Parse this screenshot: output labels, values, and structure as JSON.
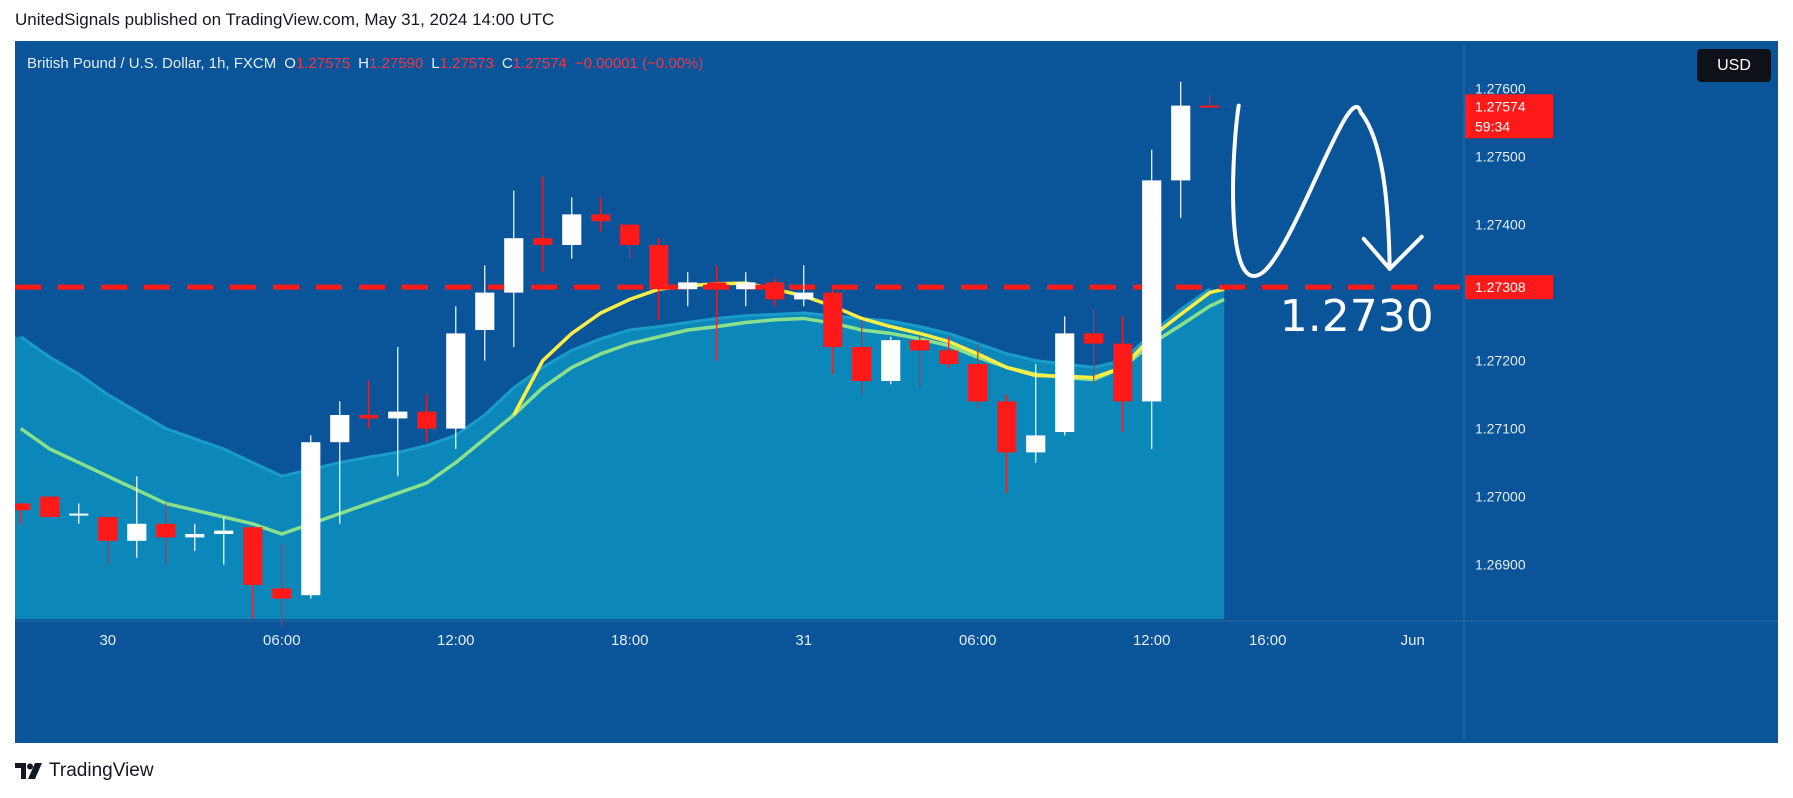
{
  "header": {
    "publisher": "UnitedSignals published on TradingView.com, May 31, 2024 14:00 UTC"
  },
  "legend": {
    "symbol": "British Pound / U.S. Dollar, 1h, FXCM",
    "open_label": "O",
    "open": "1.27575",
    "high_label": "H",
    "high": "1.27590",
    "low_label": "L",
    "low": "1.27573",
    "close_label": "C",
    "close": "1.27574",
    "change": "−0.00001 (−0.00%)"
  },
  "currency_button": "USD",
  "footer": {
    "brand": "TradingView"
  },
  "colors": {
    "background": "#0a5499",
    "up_candle": "#ffffff",
    "down_candle": "#ff1a1a",
    "price_line": "#ff1a1a",
    "ema_fast": "#ffee44",
    "ema_slow": "#8be08b",
    "cloud": "#0b87b9",
    "label_red": "#ff1a1a"
  },
  "chart_data": {
    "type": "candlestick",
    "interval": "1h",
    "y_axis": {
      "ticks": [
        "1.26900",
        "1.27000",
        "1.27100",
        "1.27200",
        "1.27300",
        "1.27400",
        "1.27500",
        "1.27600"
      ],
      "ylim": [
        1.2682,
        1.2767
      ]
    },
    "x_axis": {
      "ticks": [
        {
          "label": "30",
          "index": 3
        },
        {
          "label": "06:00",
          "index": 9
        },
        {
          "label": "12:00",
          "index": 15
        },
        {
          "label": "18:00",
          "index": 21
        },
        {
          "label": "31",
          "index": 27
        },
        {
          "label": "06:00",
          "index": 33
        },
        {
          "label": "12:00",
          "index": 39
        },
        {
          "label": "16:00",
          "index": 43
        },
        {
          "label": "Jun",
          "index": 48
        }
      ],
      "range": [
        -0.2,
        49.7
      ]
    },
    "candles": [
      {
        "o": 1.2699,
        "h": 1.2699,
        "l": 1.2696,
        "c": 1.2698
      },
      {
        "o": 1.27,
        "h": 1.27,
        "l": 1.2697,
        "c": 1.2697
      },
      {
        "o": 1.26975,
        "h": 1.2699,
        "l": 1.2696,
        "c": 1.26975
      },
      {
        "o": 1.2697,
        "h": 1.2697,
        "l": 1.269,
        "c": 1.26935
      },
      {
        "o": 1.26935,
        "h": 1.2703,
        "l": 1.2691,
        "c": 1.2696
      },
      {
        "o": 1.2696,
        "h": 1.2699,
        "l": 1.269,
        "c": 1.2694
      },
      {
        "o": 1.2694,
        "h": 1.2696,
        "l": 1.2692,
        "c": 1.26945
      },
      {
        "o": 1.26945,
        "h": 1.2697,
        "l": 1.269,
        "c": 1.2695
      },
      {
        "o": 1.26955,
        "h": 1.26955,
        "l": 1.2682,
        "c": 1.2687
      },
      {
        "o": 1.26865,
        "h": 1.2693,
        "l": 1.2681,
        "c": 1.2685
      },
      {
        "o": 1.26855,
        "h": 1.2709,
        "l": 1.2685,
        "c": 1.2708
      },
      {
        "o": 1.2708,
        "h": 1.2714,
        "l": 1.2696,
        "c": 1.2712
      },
      {
        "o": 1.2712,
        "h": 1.2717,
        "l": 1.271,
        "c": 1.27115
      },
      {
        "o": 1.27115,
        "h": 1.2722,
        "l": 1.2703,
        "c": 1.27125
      },
      {
        "o": 1.27125,
        "h": 1.2715,
        "l": 1.2708,
        "c": 1.271
      },
      {
        "o": 1.271,
        "h": 1.2728,
        "l": 1.2707,
        "c": 1.2724
      },
      {
        "o": 1.27245,
        "h": 1.2734,
        "l": 1.272,
        "c": 1.273
      },
      {
        "o": 1.273,
        "h": 1.2745,
        "l": 1.2722,
        "c": 1.2738
      },
      {
        "o": 1.2738,
        "h": 1.2747,
        "l": 1.2733,
        "c": 1.2737
      },
      {
        "o": 1.2737,
        "h": 1.2744,
        "l": 1.2735,
        "c": 1.27415
      },
      {
        "o": 1.27415,
        "h": 1.2744,
        "l": 1.2739,
        "c": 1.27405
      },
      {
        "o": 1.274,
        "h": 1.274,
        "l": 1.2735,
        "c": 1.2737
      },
      {
        "o": 1.2737,
        "h": 1.2738,
        "l": 1.2726,
        "c": 1.27305
      },
      {
        "o": 1.27305,
        "h": 1.2733,
        "l": 1.2728,
        "c": 1.27315
      },
      {
        "o": 1.27315,
        "h": 1.2734,
        "l": 1.272,
        "c": 1.27305
      },
      {
        "o": 1.27305,
        "h": 1.2733,
        "l": 1.2728,
        "c": 1.27315
      },
      {
        "o": 1.27315,
        "h": 1.2732,
        "l": 1.2728,
        "c": 1.2729
      },
      {
        "o": 1.2729,
        "h": 1.2734,
        "l": 1.2728,
        "c": 1.273
      },
      {
        "o": 1.273,
        "h": 1.2731,
        "l": 1.2718,
        "c": 1.2722
      },
      {
        "o": 1.2722,
        "h": 1.2726,
        "l": 1.2715,
        "c": 1.2717
      },
      {
        "o": 1.2717,
        "h": 1.27235,
        "l": 1.27165,
        "c": 1.2723
      },
      {
        "o": 1.2723,
        "h": 1.27235,
        "l": 1.2716,
        "c": 1.27215
      },
      {
        "o": 1.27215,
        "h": 1.27235,
        "l": 1.2719,
        "c": 1.27195
      },
      {
        "o": 1.27195,
        "h": 1.27225,
        "l": 1.2713,
        "c": 1.2714
      },
      {
        "o": 1.2714,
        "h": 1.2715,
        "l": 1.27005,
        "c": 1.27065
      },
      {
        "o": 1.27065,
        "h": 1.27195,
        "l": 1.2705,
        "c": 1.2709
      },
      {
        "o": 1.27095,
        "h": 1.27265,
        "l": 1.2709,
        "c": 1.2724
      },
      {
        "o": 1.2724,
        "h": 1.27275,
        "l": 1.27165,
        "c": 1.27225
      },
      {
        "o": 1.27225,
        "h": 1.27265,
        "l": 1.27095,
        "c": 1.2714
      },
      {
        "o": 1.2714,
        "h": 1.2751,
        "l": 1.2707,
        "c": 1.27465
      },
      {
        "o": 1.27465,
        "h": 1.2761,
        "l": 1.2741,
        "c": 1.27575
      },
      {
        "o": 1.27575,
        "h": 1.2759,
        "l": 1.27573,
        "c": 1.27574
      }
    ],
    "ema_fast": [
      null,
      null,
      null,
      null,
      null,
      null,
      null,
      null,
      null,
      null,
      null,
      null,
      null,
      null,
      null,
      null,
      null,
      1.2712,
      1.272,
      1.2724,
      1.2727,
      1.2729,
      1.27305,
      1.2731,
      1.27313,
      1.27314,
      1.27305,
      1.27295,
      1.2728,
      1.27262,
      1.2725,
      1.2724,
      1.27228,
      1.2721,
      1.2719,
      1.27178,
      1.27177,
      1.27175,
      1.2719,
      1.27235,
      1.27268,
      1.273
    ],
    "ema_slow": [
      1.271,
      1.2707,
      1.2705,
      1.2703,
      1.2701,
      1.2699,
      1.2698,
      1.2697,
      1.2696,
      1.26945,
      1.2696,
      1.26975,
      1.2699,
      1.27005,
      1.2702,
      1.2705,
      1.27085,
      1.2712,
      1.2716,
      1.2719,
      1.2721,
      1.27225,
      1.27235,
      1.27245,
      1.2725,
      1.27256,
      1.2726,
      1.27262,
      1.27255,
      1.27245,
      1.2724,
      1.27232,
      1.27222,
      1.27205,
      1.2719,
      1.2718,
      1.27175,
      1.27172,
      1.2719,
      1.27225,
      1.27252,
      1.2728
    ],
    "cloud_top": [
      1.27235,
      1.27205,
      1.2718,
      1.2715,
      1.27125,
      1.271,
      1.27085,
      1.2707,
      1.2705,
      1.2703,
      1.2704,
      1.2705,
      1.27058,
      1.27065,
      1.27075,
      1.2709,
      1.2712,
      1.2716,
      1.2719,
      1.27215,
      1.27232,
      1.27245,
      1.2725,
      1.27256,
      1.27262,
      1.27266,
      1.27268,
      1.2727,
      1.27266,
      1.27262,
      1.27258,
      1.2725,
      1.2724,
      1.27225,
      1.2721,
      1.272,
      1.27195,
      1.2719,
      1.272,
      1.2724,
      1.27275,
      1.27305
    ],
    "price_line": {
      "value": 1.27574,
      "label": "1.27574",
      "countdown": "59:34"
    },
    "level": {
      "value": 1.27308,
      "label": "1.27308",
      "annotation": "1.2730"
    }
  }
}
